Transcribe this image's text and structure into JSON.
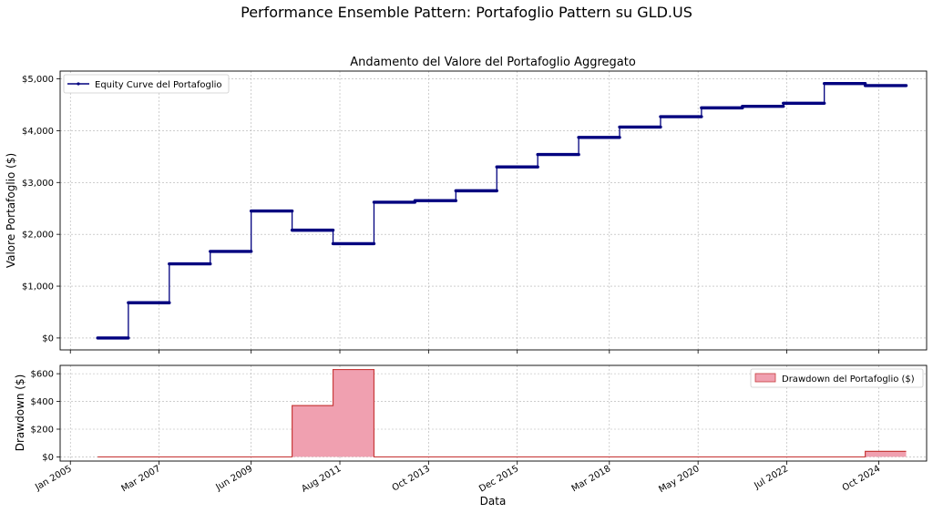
{
  "figure": {
    "suptitle": "Performance Ensemble Pattern: Portafoglio Pattern su GLD.US",
    "xlabel": "Data"
  },
  "colors": {
    "equity_line": "#00007f",
    "drawdown_fill": "#f0a0b0",
    "drawdown_edge": "#c83c3c"
  },
  "chart_data": [
    {
      "type": "line",
      "title": "Andamento del Valore del Portafoglio Aggregato",
      "ylabel": "Valore Portafoglio ($)",
      "ylim": [
        -230,
        5150
      ],
      "yticks": [
        0,
        1000,
        2000,
        3000,
        4000,
        5000
      ],
      "ytick_labels": [
        "$0",
        "$1,000",
        "$2,000",
        "$3,000",
        "$4,000",
        "$5,000"
      ],
      "grid": true,
      "legend": "top-left",
      "series": [
        {
          "name": "Equity Curve del Portafoglio",
          "steps": [
            {
              "start": "2005-09",
              "end": "2006-06",
              "value": 0
            },
            {
              "start": "2006-06",
              "end": "2007-06",
              "value": 680
            },
            {
              "start": "2007-06",
              "end": "2008-06",
              "value": 1430
            },
            {
              "start": "2008-06",
              "end": "2009-06",
              "value": 1670
            },
            {
              "start": "2009-06",
              "end": "2010-06",
              "value": 2450
            },
            {
              "start": "2010-06",
              "end": "2011-06",
              "value": 2080
            },
            {
              "start": "2011-06",
              "end": "2012-06",
              "value": 1820
            },
            {
              "start": "2012-06",
              "end": "2013-06",
              "value": 2620
            },
            {
              "start": "2013-06",
              "end": "2014-06",
              "value": 2650
            },
            {
              "start": "2014-06",
              "end": "2015-06",
              "value": 2840
            },
            {
              "start": "2015-06",
              "end": "2016-06",
              "value": 3300
            },
            {
              "start": "2016-06",
              "end": "2017-06",
              "value": 3540
            },
            {
              "start": "2017-06",
              "end": "2018-06",
              "value": 3870
            },
            {
              "start": "2018-06",
              "end": "2019-06",
              "value": 4070
            },
            {
              "start": "2019-06",
              "end": "2020-06",
              "value": 4270
            },
            {
              "start": "2020-06",
              "end": "2021-06",
              "value": 4440
            },
            {
              "start": "2021-06",
              "end": "2022-06",
              "value": 4470
            },
            {
              "start": "2022-06",
              "end": "2023-06",
              "value": 4530
            },
            {
              "start": "2023-06",
              "end": "2024-06",
              "value": 4910
            },
            {
              "start": "2024-06",
              "end": "2025-06",
              "value": 4870
            }
          ]
        }
      ]
    },
    {
      "type": "area",
      "ylabel": "Drawdown ($)",
      "ylim": [
        -30,
        660
      ],
      "yticks": [
        0,
        200,
        400,
        600
      ],
      "ytick_labels": [
        "$0",
        "$200",
        "$400",
        "$600"
      ],
      "grid": true,
      "legend": "top-right",
      "series": [
        {
          "name": "Drawdown del Portafoglio ($)",
          "steps": [
            {
              "start": "2005-09",
              "end": "2010-06",
              "value": 0
            },
            {
              "start": "2010-06",
              "end": "2011-06",
              "value": 370
            },
            {
              "start": "2011-06",
              "end": "2012-06",
              "value": 630
            },
            {
              "start": "2012-06",
              "end": "2024-06",
              "value": 0
            },
            {
              "start": "2024-06",
              "end": "2025-06",
              "value": 40
            }
          ]
        }
      ]
    }
  ],
  "xaxis": {
    "range": [
      "2004-10",
      "2025-12"
    ],
    "ticks": [
      "2005-01",
      "2007-03",
      "2009-06",
      "2011-08",
      "2013-10",
      "2015-12",
      "2018-03",
      "2020-05",
      "2022-07",
      "2024-10"
    ],
    "tick_labels": [
      "Jan 2005",
      "Mar 2007",
      "Jun 2009",
      "Aug 2011",
      "Oct 2013",
      "Dec 2015",
      "Mar 2018",
      "May 2020",
      "Jul 2022",
      "Oct 2024"
    ]
  }
}
